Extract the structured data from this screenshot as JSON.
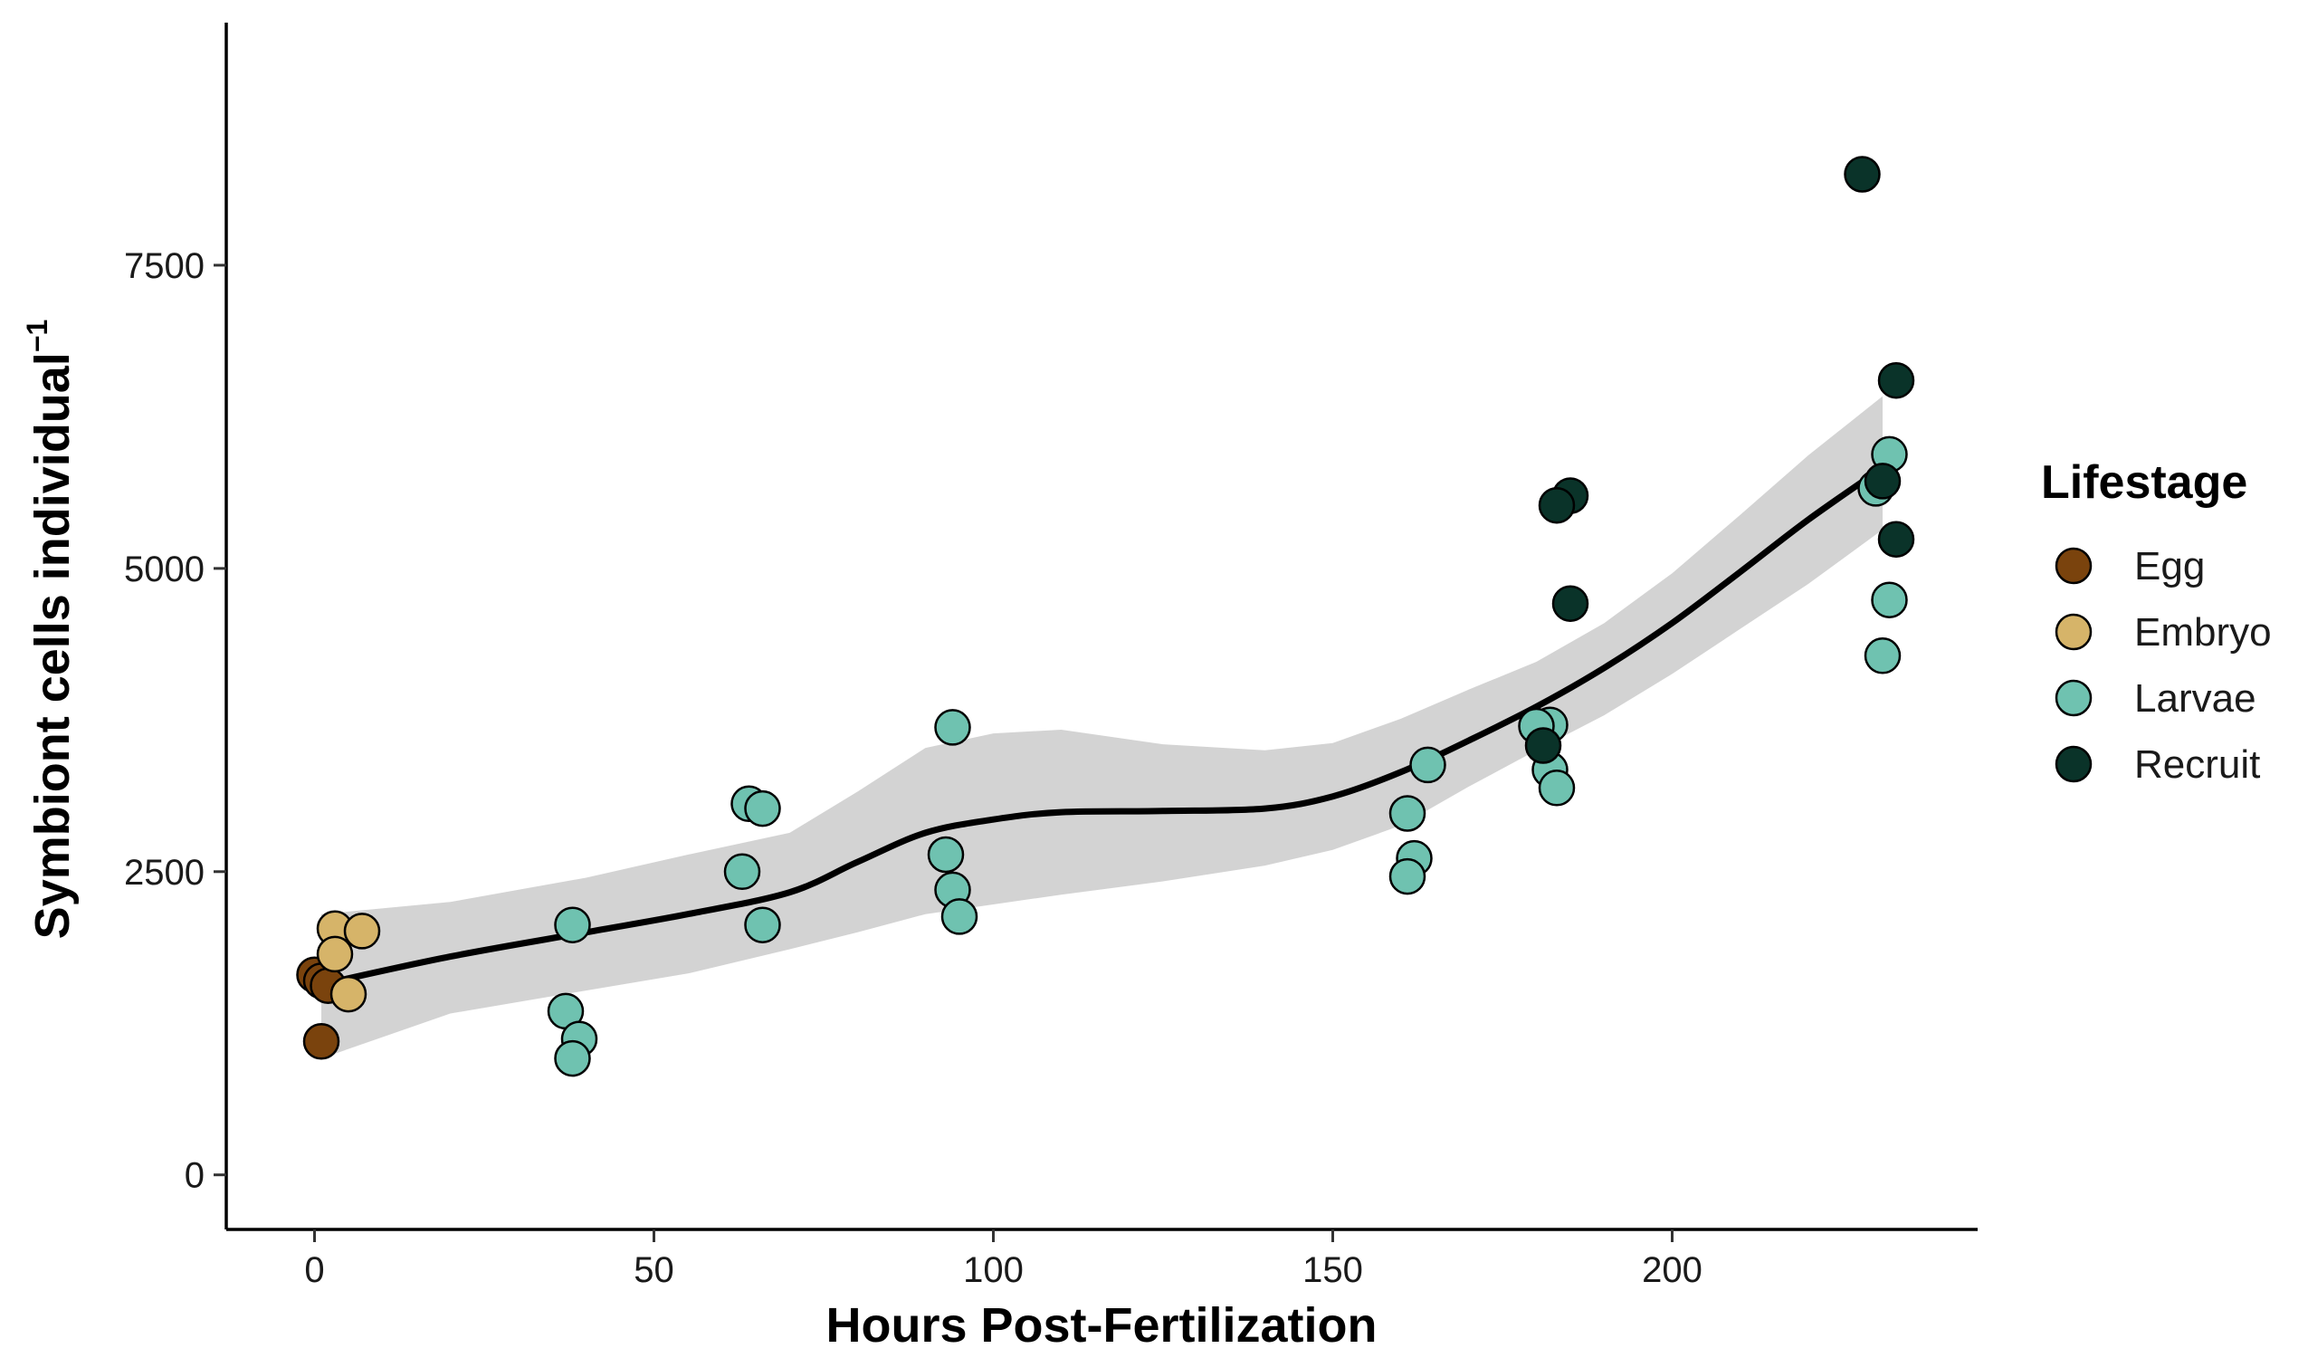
{
  "chart_data": {
    "type": "scatter",
    "xlabel": "Hours Post-Fertilization",
    "ylabel": "Symbiont cells individual",
    "ylabel_superscript": "−1",
    "xlim": [
      -13,
      245
    ],
    "ylim": [
      -450,
      9500
    ],
    "xticks": [
      0,
      50,
      100,
      150,
      200
    ],
    "yticks": [
      0,
      2500,
      5000,
      7500
    ],
    "grid": false,
    "legend": {
      "title": "Lifestage",
      "position": "right",
      "entries": [
        "Egg",
        "Embryo",
        "Larvae",
        "Recruit"
      ]
    },
    "colors": {
      "Egg": "#7a430d",
      "Embryo": "#d6b469",
      "Larvae": "#6fc2b0",
      "Recruit": "#0a3329",
      "smooth_line": "#000000",
      "confidence_band": "#d3d3d3"
    },
    "series": [
      {
        "name": "Egg",
        "points": [
          [
            0,
            1650
          ],
          [
            1,
            1600
          ],
          [
            2,
            1560
          ],
          [
            1,
            1100
          ]
        ]
      },
      {
        "name": "Embryo",
        "points": [
          [
            3,
            2030
          ],
          [
            7,
            2010
          ],
          [
            3,
            1820
          ],
          [
            5,
            1490
          ]
        ]
      },
      {
        "name": "Larvae",
        "points": [
          [
            38,
            2060
          ],
          [
            37,
            1350
          ],
          [
            39,
            1120
          ],
          [
            38,
            960
          ],
          [
            64,
            3060
          ],
          [
            66,
            3020
          ],
          [
            63,
            2500
          ],
          [
            66,
            2060
          ],
          [
            94,
            3690
          ],
          [
            93,
            2640
          ],
          [
            94,
            2350
          ],
          [
            95,
            2130
          ],
          [
            164,
            3380
          ],
          [
            161,
            2980
          ],
          [
            162,
            2610
          ],
          [
            161,
            2460
          ],
          [
            182,
            3710
          ],
          [
            180,
            3700
          ],
          [
            182,
            3340
          ],
          [
            183,
            3190
          ],
          [
            232,
            5940
          ],
          [
            230,
            5660
          ],
          [
            232,
            4740
          ],
          [
            231,
            4280
          ]
        ]
      },
      {
        "name": "Recruit",
        "points": [
          [
            228,
            8250
          ],
          [
            233,
            6550
          ],
          [
            231,
            5720
          ],
          [
            233,
            5240
          ],
          [
            185,
            5600
          ],
          [
            183,
            5520
          ],
          [
            185,
            4710
          ],
          [
            181,
            3540
          ]
        ]
      }
    ],
    "smooth_fit": {
      "x": [
        1,
        20,
        40,
        55,
        70,
        80,
        90,
        100,
        110,
        125,
        140,
        150,
        160,
        170,
        180,
        190,
        200,
        210,
        220,
        231
      ],
      "y": [
        1570,
        1800,
        2000,
        2150,
        2330,
        2580,
        2820,
        2930,
        2990,
        3000,
        3020,
        3120,
        3320,
        3580,
        3860,
        4180,
        4550,
        4970,
        5400,
        5830
      ],
      "lower": [
        960,
        1330,
        1520,
        1660,
        1860,
        2000,
        2150,
        2230,
        2310,
        2420,
        2550,
        2680,
        2880,
        3200,
        3500,
        3790,
        4130,
        4500,
        4870,
        5320
      ],
      "upper": [
        2150,
        2250,
        2450,
        2640,
        2820,
        3160,
        3520,
        3640,
        3670,
        3550,
        3500,
        3560,
        3760,
        4000,
        4230,
        4550,
        4960,
        5440,
        5930,
        6420
      ]
    }
  }
}
